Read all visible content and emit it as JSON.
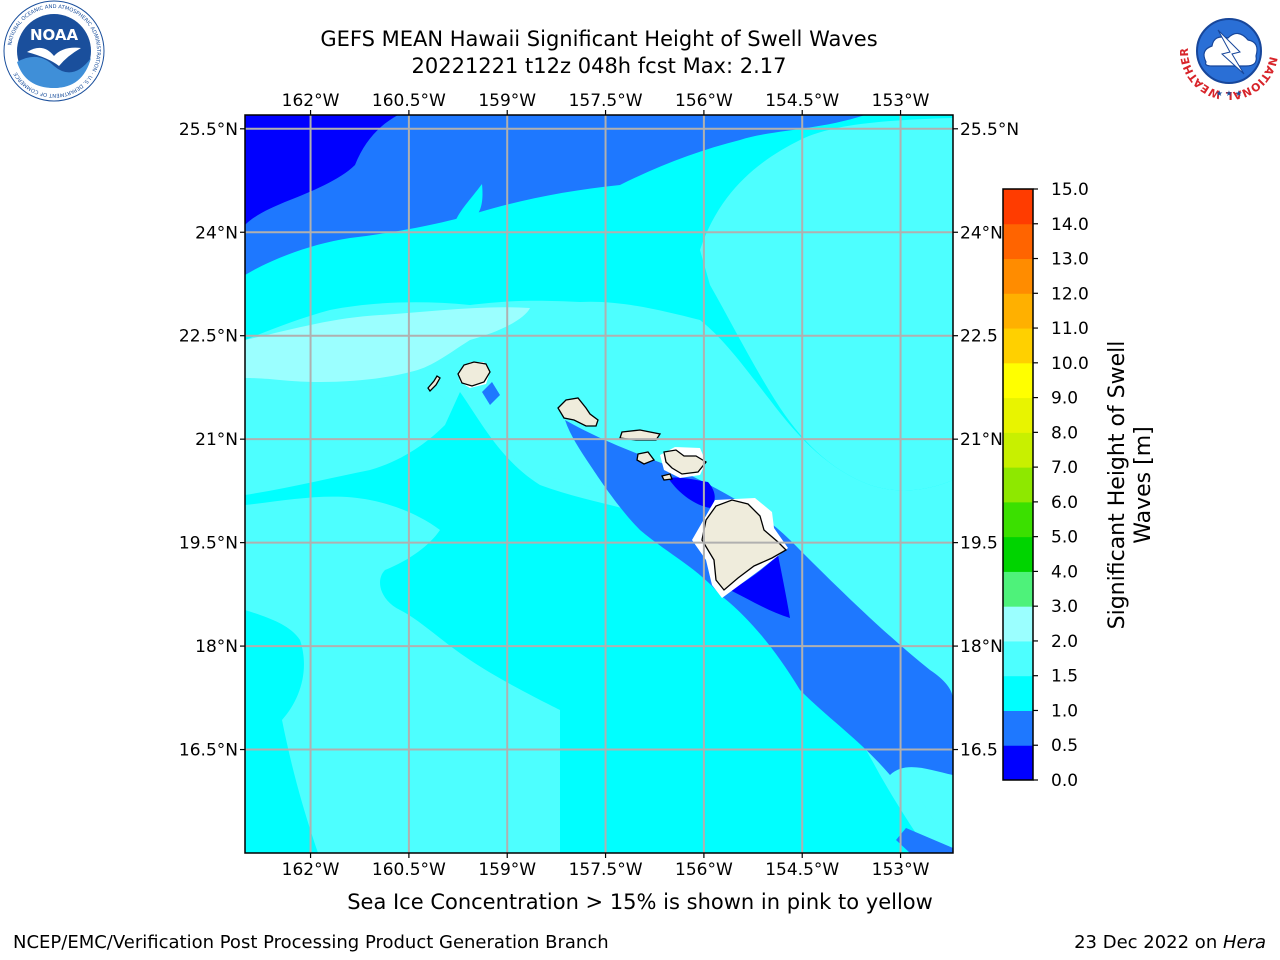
{
  "header": {
    "title_line1": "GEFS MEAN Hawaii Significant Height of Swell Waves",
    "title_line2": "20221221 t12z 048h fcst   Max: 2.17"
  },
  "logos": {
    "noaa_text": "NOAA",
    "noaa_ring_text": "NATIONAL OCEANIC AND ATMOSPHERIC ADMINISTRATION · U.S. DEPARTMENT OF COMMERCE",
    "nws_ring_text": "NATIONAL WEATHER SERVICE"
  },
  "map": {
    "lon_ticks": [
      "162°W",
      "160.5°W",
      "159°W",
      "157.5°W",
      "156°W",
      "154.5°W",
      "153°W"
    ],
    "lat_ticks": [
      "25.5°N",
      "24°N",
      "22.5°N",
      "21°N",
      "19.5°N",
      "18°N",
      "16.5°N"
    ],
    "lat_ticks_right": [
      "25.5°N",
      "24°N",
      "22.5",
      "21°N",
      "19.5",
      "18°N",
      "16.5"
    ],
    "lon_range": [
      -163,
      -152.2
    ],
    "lat_range": [
      15.0,
      25.7
    ],
    "grid": true,
    "max_value": 2.17
  },
  "colorbar": {
    "label_line1": "Significant Height of Swell",
    "label_line2": "Waves [m]",
    "levels": [
      "0.0",
      "0.5",
      "1.0",
      "1.5",
      "2.0",
      "3.0",
      "4.0",
      "5.0",
      "6.0",
      "7.0",
      "8.0",
      "9.0",
      "10.0",
      "11.0",
      "12.0",
      "13.0",
      "14.0",
      "15.0"
    ],
    "colors": [
      "#0000ff",
      "#1e78ff",
      "#00ffff",
      "#4dffff",
      "#9bffff",
      "#4ef27a",
      "#00d400",
      "#3be000",
      "#8ee800",
      "#c8f000",
      "#e8f400",
      "#ffff00",
      "#ffd000",
      "#ffb000",
      "#ff8c00",
      "#ff6400",
      "#ff3c00",
      "#ff0000"
    ]
  },
  "subtitle": "Sea Ice Concentration > 15% is shown in pink to yellow",
  "footer": {
    "left": "NCEP/EMC/Verification Post Processing Product Generation Branch",
    "right_date": "23 Dec 2022 on ",
    "right_host": "Hera"
  },
  "colors": {
    "land": "#efecdc",
    "grid": "#b0b0b0",
    "noaa_blue": "#1a4f9c",
    "nws_red": "#d8242a"
  }
}
